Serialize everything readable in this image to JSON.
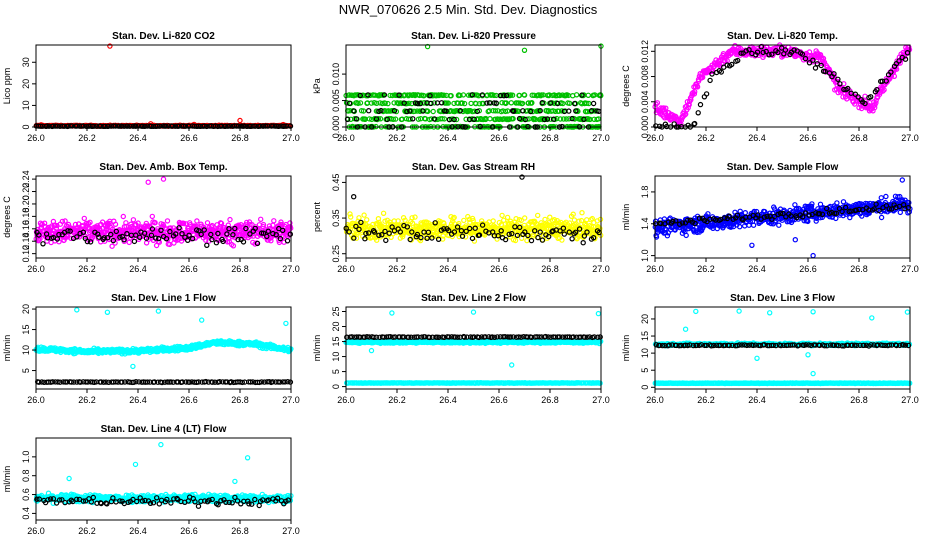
{
  "page": {
    "title": "NWR_070626  2.5 Min. Std. Dev. Diagnostics"
  },
  "colors": {
    "red": "#ff0000",
    "green": "#00c000",
    "magenta": "#ff00ff",
    "yellow": "#ffff00",
    "blue": "#0000ff",
    "cyan": "#00ffff",
    "black": "#000000"
  },
  "chart_data": [
    {
      "type": "scatter",
      "title": "Stan. Dev. Li-820 CO2",
      "xlabel": "",
      "ylabel": "Lico ppm",
      "xlim": [
        26.0,
        27.0
      ],
      "ylim": [
        0,
        38
      ],
      "xticks": [
        "26.0",
        "26.2",
        "26.4",
        "26.6",
        "26.8",
        "27.0"
      ],
      "yticks": [
        0,
        10,
        20,
        30
      ],
      "ytick_labels": [
        "0",
        "10",
        "20",
        "30"
      ],
      "series": [
        {
          "name": "primary",
          "color": "#ff0000",
          "base": 0.6,
          "spread": 0.4,
          "n": 300,
          "outliers": [
            [
              26.29,
              37.5
            ],
            [
              26.8,
              3.0
            ],
            [
              26.45,
              1.5
            ],
            [
              26.62,
              1.2
            ],
            [
              26.02,
              1.0
            ],
            [
              26.97,
              1.1
            ]
          ]
        },
        {
          "name": "overlay",
          "color": "#000000",
          "base": 0.4,
          "spread": 0.2,
          "n": 120
        }
      ]
    },
    {
      "type": "scatter",
      "title": "Stan. Dev. Li-820 Pressure",
      "xlabel": "",
      "ylabel": "kPa",
      "xlim": [
        26.0,
        27.0
      ],
      "ylim": [
        0,
        0.0155
      ],
      "xticks": [
        "26.0",
        "26.2",
        "26.4",
        "26.6",
        "26.8",
        "27.0"
      ],
      "yticks": [
        0.0,
        0.005,
        0.01
      ],
      "ytick_labels": [
        "0.000",
        "0.005",
        "0.010"
      ],
      "series": [
        {
          "name": "primary",
          "color": "#00c000",
          "levels": [
            0.0,
            0.0015,
            0.003,
            0.0045,
            0.006
          ],
          "n": 600,
          "outliers": [
            [
              26.32,
              0.0152
            ],
            [
              26.7,
              0.0145
            ],
            [
              27.0,
              0.0153
            ]
          ]
        },
        {
          "name": "overlay",
          "color": "#000000",
          "levels": [
            0.0,
            0.0015,
            0.003,
            0.0045,
            0.006
          ],
          "n": 90
        }
      ]
    },
    {
      "type": "scatter",
      "title": "Stan. Dev. Li-820 Temp.",
      "xlabel": "",
      "ylabel": "degrees C",
      "xlim": [
        26.0,
        27.0
      ],
      "ylim": [
        0,
        0.013
      ],
      "xticks": [
        "26.0",
        "26.2",
        "26.4",
        "26.6",
        "26.8",
        "27.0"
      ],
      "yticks": [
        0.0,
        0.004,
        0.008,
        0.012
      ],
      "ytick_labels": [
        "0.000",
        "0.004",
        "0.008",
        "0.012"
      ],
      "series": [
        {
          "name": "primary",
          "color": "#ff00ff",
          "profile": [
            [
              26.0,
              0.003
            ],
            [
              26.1,
              0.001
            ],
            [
              26.18,
              0.008
            ],
            [
              26.3,
              0.012
            ],
            [
              26.5,
              0.012
            ],
            [
              26.65,
              0.011
            ],
            [
              26.72,
              0.006
            ],
            [
              26.85,
              0.003
            ],
            [
              26.95,
              0.01
            ],
            [
              27.0,
              0.0125
            ]
          ],
          "spread": 0.0015,
          "n": 450
        },
        {
          "name": "overlay",
          "color": "#000000",
          "profile": [
            [
              26.0,
              0.0
            ],
            [
              26.15,
              0.0
            ],
            [
              26.22,
              0.008
            ],
            [
              26.35,
              0.012
            ],
            [
              26.55,
              0.012
            ],
            [
              26.7,
              0.008
            ],
            [
              26.82,
              0.004
            ],
            [
              26.95,
              0.01
            ],
            [
              27.0,
              0.012
            ]
          ],
          "spread": 0.001,
          "n": 90
        }
      ]
    },
    {
      "type": "scatter",
      "title": "Stan. Dev. Amb. Box Temp.",
      "xlabel": "",
      "ylabel": "degrees C",
      "xlim": [
        26.0,
        27.0
      ],
      "ylim": [
        0.113,
        0.245
      ],
      "xticks": [
        "26.0",
        "26.2",
        "26.4",
        "26.6",
        "26.8",
        "27.0"
      ],
      "yticks": [
        0.12,
        0.14,
        0.16,
        0.18,
        0.2,
        0.22,
        0.24
      ],
      "ytick_labels": [
        "0.12",
        "0.14",
        "0.16",
        "0.18",
        "0.20",
        "0.22",
        "0.24"
      ],
      "series": [
        {
          "name": "primary",
          "color": "#ff00ff",
          "base": 0.155,
          "spread": 0.035,
          "n": 600,
          "outliers": [
            [
              26.5,
              0.24
            ],
            [
              26.44,
              0.235
            ]
          ]
        },
        {
          "name": "overlay",
          "color": "#000000",
          "base": 0.15,
          "spread": 0.025,
          "n": 90
        }
      ]
    },
    {
      "type": "scatter",
      "title": "Stan. Dev. Gas Stream RH",
      "xlabel": "",
      "ylabel": "percent",
      "xlim": [
        26.0,
        27.0
      ],
      "ylim": [
        0.238,
        0.468
      ],
      "xticks": [
        "26.0",
        "26.2",
        "26.4",
        "26.6",
        "26.8",
        "27.0"
      ],
      "yticks": [
        0.25,
        0.35,
        0.45
      ],
      "ytick_labels": [
        "0.25",
        "0.35",
        "0.45"
      ],
      "series": [
        {
          "name": "primary",
          "color": "#ffff00",
          "base": 0.32,
          "spread": 0.06,
          "n": 600
        },
        {
          "name": "overlay",
          "color": "#000000",
          "base": 0.31,
          "spread": 0.05,
          "n": 90,
          "outliers": [
            [
              26.69,
              0.465
            ],
            [
              26.03,
              0.41
            ]
          ]
        }
      ]
    },
    {
      "type": "scatter",
      "title": "Stan. Dev. Sample Flow",
      "xlabel": "",
      "ylabel": "ml/min",
      "xlim": [
        26.0,
        27.0
      ],
      "ylim": [
        0.97,
        2.0
      ],
      "xticks": [
        "26.0",
        "26.2",
        "26.4",
        "26.6",
        "26.8",
        "27.0"
      ],
      "yticks": [
        1.0,
        1.4,
        1.8
      ],
      "ytick_labels": [
        "1.0",
        "1.4",
        "1.8"
      ],
      "series": [
        {
          "name": "primary",
          "color": "#0000ff",
          "trend": [
            1.35,
            1.65
          ],
          "spread": 0.18,
          "n": 600,
          "outliers": [
            [
              26.62,
              1.0
            ],
            [
              26.97,
              1.95
            ],
            [
              26.38,
              1.13
            ],
            [
              26.55,
              1.2
            ]
          ]
        },
        {
          "name": "overlay",
          "color": "#000000",
          "trend": [
            1.4,
            1.62
          ],
          "spread": 0.07,
          "n": 90
        }
      ]
    },
    {
      "type": "scatter",
      "title": "Stan. Dev. Line 1 Flow",
      "xlabel": "",
      "ylabel": "ml/min",
      "xlim": [
        26.0,
        27.0
      ],
      "ylim": [
        0.5,
        20.5
      ],
      "xticks": [
        "26.0",
        "26.2",
        "26.4",
        "26.6",
        "26.8",
        "27.0"
      ],
      "yticks": [
        5,
        10,
        15,
        20
      ],
      "ytick_labels": [
        "5",
        "10",
        "15",
        "20"
      ],
      "series": [
        {
          "name": "primary",
          "color": "#00ffff",
          "profile": [
            [
              26.0,
              10.3
            ],
            [
              26.2,
              9.6
            ],
            [
              26.4,
              9.8
            ],
            [
              26.6,
              10.5
            ],
            [
              26.7,
              11.8
            ],
            [
              26.85,
              11.5
            ],
            [
              27.0,
              10.0
            ]
          ],
          "spread": 0.9,
          "n": 600,
          "outliers": [
            [
              26.16,
              19.8
            ],
            [
              26.65,
              17.3
            ],
            [
              26.48,
              19.5
            ],
            [
              26.98,
              16.5
            ],
            [
              26.28,
              19.2
            ],
            [
              26.38,
              6.0
            ]
          ]
        },
        {
          "name": "overlay",
          "color": "#000000",
          "base": 2.2,
          "spread": 0.2,
          "n": 110
        }
      ]
    },
    {
      "type": "scatter",
      "title": "Stan. Dev. Line 2 Flow",
      "xlabel": "",
      "ylabel": "ml/min",
      "xlim": [
        26.0,
        27.0
      ],
      "ylim": [
        -0.8,
        26.5
      ],
      "xticks": [
        "26.0",
        "26.2",
        "26.4",
        "26.6",
        "26.8",
        "27.0"
      ],
      "yticks": [
        0,
        5,
        10,
        15,
        20,
        25
      ],
      "ytick_labels": [
        "0",
        "5",
        "10",
        "15",
        "20",
        "25"
      ],
      "series": [
        {
          "name": "primary-high",
          "color": "#00ffff",
          "base": 14.8,
          "spread": 0.7,
          "n": 400,
          "outliers": [
            [
              26.18,
              24.5
            ],
            [
              26.5,
              24.8
            ],
            [
              26.65,
              7.2
            ],
            [
              26.99,
              24.3
            ],
            [
              26.1,
              12.0
            ]
          ]
        },
        {
          "name": "primary-low",
          "color": "#00ffff",
          "base": 1.2,
          "spread": 0.15,
          "n": 260
        },
        {
          "name": "overlay",
          "color": "#000000",
          "base": 16.5,
          "spread": 0.25,
          "n": 110
        }
      ]
    },
    {
      "type": "scatter",
      "title": "Stan. Dev. Line 3 Flow",
      "xlabel": "",
      "ylabel": "ml/min",
      "xlim": [
        26.0,
        27.0
      ],
      "ylim": [
        -0.5,
        23.5
      ],
      "xticks": [
        "26.0",
        "26.2",
        "26.4",
        "26.6",
        "26.8",
        "27.0"
      ],
      "yticks": [
        0,
        5,
        10,
        15,
        20
      ],
      "ytick_labels": [
        "0",
        "5",
        "10",
        "15",
        "20"
      ],
      "series": [
        {
          "name": "primary-high",
          "color": "#00ffff",
          "base": 12.6,
          "spread": 0.7,
          "n": 350,
          "outliers": [
            [
              26.12,
              17.0
            ],
            [
              26.16,
              22.2
            ],
            [
              26.33,
              22.3
            ],
            [
              26.45,
              21.8
            ],
            [
              26.62,
              22.1
            ],
            [
              26.85,
              20.3
            ],
            [
              26.99,
              22.0
            ],
            [
              26.4,
              8.5
            ],
            [
              26.6,
              9.5
            ],
            [
              26.62,
              4.0
            ]
          ]
        },
        {
          "name": "primary-low",
          "color": "#00ffff",
          "base": 1.2,
          "spread": 0.15,
          "n": 260
        },
        {
          "name": "overlay",
          "color": "#000000",
          "base": 12.3,
          "spread": 0.3,
          "n": 110
        }
      ]
    },
    {
      "type": "scatter",
      "title": "Stan. Dev. Line 4 (LT) Flow",
      "xlabel": "",
      "ylabel": "ml/min",
      "xlim": [
        26.0,
        27.0
      ],
      "ylim": [
        0.33,
        1.2
      ],
      "xticks": [
        "26.0",
        "26.2",
        "26.4",
        "26.6",
        "26.8",
        "27.0"
      ],
      "yticks": [
        0.4,
        0.6,
        0.8,
        1.0
      ],
      "ytick_labels": [
        "0.4",
        "0.6",
        "0.8",
        "1.0"
      ],
      "series": [
        {
          "name": "primary",
          "color": "#00ffff",
          "base": 0.56,
          "spread": 0.08,
          "n": 600,
          "outliers": [
            [
              26.49,
              1.13
            ],
            [
              26.83,
              0.99
            ],
            [
              26.13,
              0.77
            ],
            [
              26.39,
              0.92
            ],
            [
              26.78,
              0.74
            ]
          ]
        },
        {
          "name": "overlay",
          "color": "#000000",
          "base": 0.53,
          "spread": 0.08,
          "n": 90
        }
      ]
    }
  ]
}
